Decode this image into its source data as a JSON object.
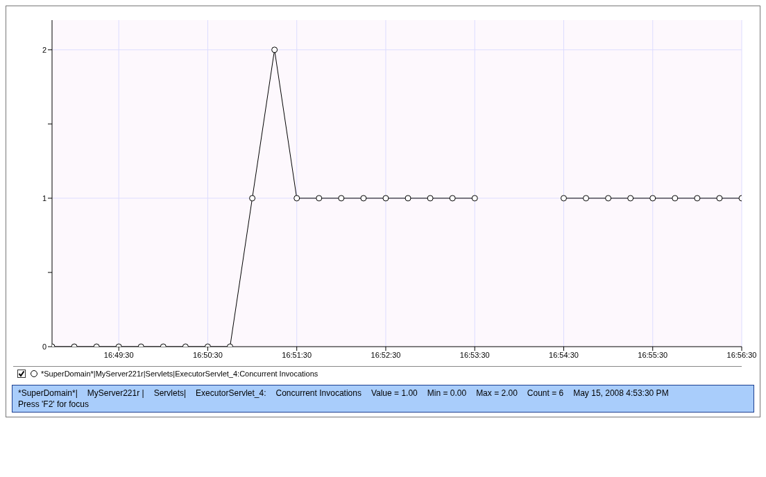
{
  "chart_data": {
    "type": "line",
    "x": [
      "2008-05-15T16:48:45",
      "2008-05-15T16:49:00",
      "2008-05-15T16:49:15",
      "2008-05-15T16:49:30",
      "2008-05-15T16:49:45",
      "2008-05-15T16:50:00",
      "2008-05-15T16:50:15",
      "2008-05-15T16:50:30",
      "2008-05-15T16:50:45",
      "2008-05-15T16:51:00",
      "2008-05-15T16:51:15",
      "2008-05-15T16:51:30",
      "2008-05-15T16:51:45",
      "2008-05-15T16:52:00",
      "2008-05-15T16:52:15",
      "2008-05-15T16:52:30",
      "2008-05-15T16:52:45",
      "2008-05-15T16:53:00",
      "2008-05-15T16:53:15",
      "2008-05-15T16:53:30",
      "2008-05-15T16:53:45",
      "2008-05-15T16:54:00",
      "2008-05-15T16:54:15",
      "2008-05-15T16:54:30",
      "2008-05-15T16:54:45",
      "2008-05-15T16:55:00",
      "2008-05-15T16:55:15",
      "2008-05-15T16:55:30",
      "2008-05-15T16:55:45",
      "2008-05-15T16:56:00",
      "2008-05-15T16:56:15",
      "2008-05-15T16:56:30"
    ],
    "series": [
      {
        "name": "*SuperDomain*|MyServer221r|Servlets|ExecutorServlet_4:Concurrent Invocations",
        "color": "#000000",
        "values": [
          0,
          0,
          0,
          0,
          0,
          0,
          0,
          0,
          0,
          1,
          2,
          1,
          1,
          1,
          1,
          1,
          1,
          1,
          1,
          1,
          null,
          null,
          null,
          1,
          1,
          1,
          1,
          1,
          1,
          1,
          1,
          1
        ]
      }
    ],
    "xlim": [
      "2008-05-15T16:48:45",
      "2008-05-15T16:56:30"
    ],
    "xticks": [
      {
        "value": "2008-05-15T16:49:30",
        "label": "16:49:30"
      },
      {
        "value": "2008-05-15T16:50:30",
        "label": "16:50:30"
      },
      {
        "value": "2008-05-15T16:51:30",
        "label": "16:51:30"
      },
      {
        "value": "2008-05-15T16:52:30",
        "label": "16:52:30"
      },
      {
        "value": "2008-05-15T16:53:30",
        "label": "16:53:30"
      },
      {
        "value": "2008-05-15T16:54:30",
        "label": "16:54:30"
      },
      {
        "value": "2008-05-15T16:55:30",
        "label": "16:55:30"
      },
      {
        "value": "2008-05-15T16:56:30",
        "label": "16:56:30"
      }
    ],
    "ylim": [
      0,
      2.2
    ],
    "yticks": [
      0,
      {
        "value": 0.5,
        "label": null
      },
      1,
      {
        "value": 1.5,
        "label": null
      },
      2
    ],
    "grid": true,
    "marker": "circle",
    "line_style": "solid",
    "legend": "bottom",
    "annotations": [
      "*SuperDomain*|",
      "MyServer221r |",
      "Servlets|",
      "ExecutorServlet_4:",
      "Concurrent Invocations",
      "Value = 1.00",
      "Min = 0.00",
      "Max = 2.00",
      "Count = 6",
      "May 15, 2008 4:53:30 PM",
      "Press 'F2' for focus"
    ]
  }
}
